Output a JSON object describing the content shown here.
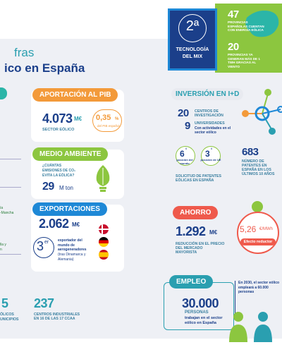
{
  "header": {
    "title_line1": "fras",
    "title_line2": "ico en España",
    "badge_ordinal": "2ª",
    "badge_label_1": "TECNOLOGÍA",
    "badge_label_2": "DEL MIX",
    "stat_47": "47",
    "stat_47_text": "PROVINCIAS ESPAÑOLAS CUENTAN CON ENERGÍA EÓLICA",
    "stat_20": "20",
    "stat_20_text": "PROVINCIAS YA GENERAN MÁS DE 1 TWh GRACIAS AL VIENTO"
  },
  "pib": {
    "title": "APORTACIÓN AL PIB",
    "value": "4.073",
    "unit": "M€",
    "sub": "SECTOR EÓLICO",
    "pct": "0,35",
    "pct_unit": "%",
    "pct_sub": "del PIB español"
  },
  "env": {
    "title": "MEDIO AMBIENTE",
    "question": "¿CUÁNTAS EMISIONES DE CO₂ EVITA LA EÓLICA?",
    "value": "29",
    "unit": "M ton"
  },
  "export": {
    "title": "EXPORTACIONES",
    "value": "2.062",
    "unit": "M€",
    "rank": "3",
    "rank_sup": "er",
    "desc_1": "exportador del mundo de aerogeneradores",
    "desc_2": "(tras Dinamarca y Alemania)"
  },
  "rd": {
    "title": "INVERSIÓN EN I+D",
    "n1": "20",
    "n1_text": "CENTROS DE INVESTIGACIÓN",
    "n2": "9",
    "n2_text": "UNIVERSIDADES",
    "n2_sub": "Con actividades en el sector eólico",
    "pos_world": "6",
    "pos_world_sup": "º",
    "pos_world_text": "posición del mundo",
    "pos_eu": "3",
    "pos_eu_sup": "º",
    "pos_eu_text": "posición de UE",
    "patents_caption": "SOLICITUD DE PATENTES EÓLICAS EN ESPAÑA",
    "patents": "683",
    "patents_text": "NÚMERO DE PATENTES EN ESPAÑA EN LOS ÚLTIMOS 10 AÑOS"
  },
  "savings": {
    "title": "AHORRO",
    "value": "1.292",
    "unit": "M€",
    "desc": "REDUCCIÓN EN EL PRECIO DEL MERCADO MAYORISTA",
    "price": "5,26",
    "price_unit": "€/MWh",
    "effect": "Efecto reductor"
  },
  "employment": {
    "title": "EMPLEO",
    "value": "30.000",
    "desc_1": "PERSONAS",
    "desc_2": "trabajan en el sector eólico en España",
    "future": "En 2030, el sector eólico empleará a 60.000 personas"
  },
  "left": {
    "item1": "ía",
    "item1b": "-Mancha",
    "item2": "lla y",
    "item2b": "n",
    "num_a": "5",
    "num_a_text_1": "ÓLICOS",
    "num_a_text_2": "UNICIPIOS",
    "num_b": "237",
    "num_b_text": "CENTROS INDUSTRIALES EN 16 DE LAS 17 CCAA"
  },
  "colors": {
    "navy": "#1b3f8a",
    "orange": "#f39a3a",
    "green": "#8cc63f",
    "blue": "#1e88d6",
    "red": "#ef5a4c",
    "teal": "#2a9fb0",
    "panel": "#eef0f5"
  }
}
